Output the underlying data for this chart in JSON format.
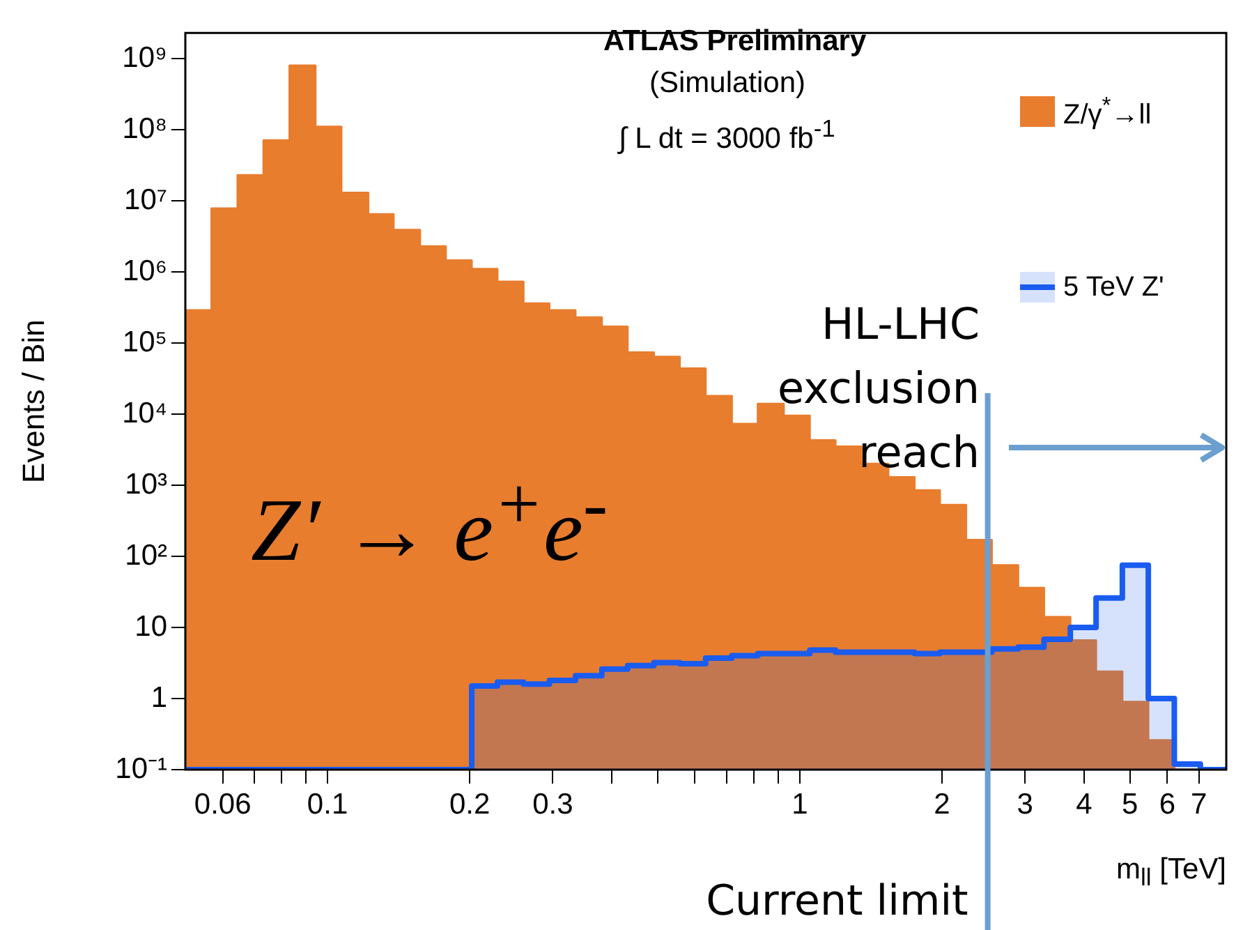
{
  "chart_data": {
    "type": "histogram",
    "xlabel": "m$_{ll}$ [TeV]",
    "ylabel": "Events / Bin",
    "log": "xy",
    "grid": false,
    "legend": "top right",
    "xlim": [
      0.05,
      8
    ],
    "ylim": [
      0.1,
      2300000000
    ],
    "xticks": [
      0.06,
      {
        "value": 0.07,
        "label": null
      },
      {
        "value": 0.08,
        "label": null
      },
      {
        "value": 0.09,
        "label": null
      },
      0.1,
      0.2,
      0.3,
      {
        "value": 0.4,
        "label": null
      },
      {
        "value": 0.5,
        "label": null
      },
      {
        "value": 0.6,
        "label": null
      },
      {
        "value": 0.7,
        "label": null
      },
      {
        "value": 0.8,
        "label": null
      },
      {
        "value": 0.9,
        "label": null
      },
      1,
      2,
      3,
      4,
      5,
      6,
      7
    ],
    "yticks": [
      {
        "value": 0.1,
        "label": "10⁻¹"
      },
      1,
      10,
      {
        "value": 100,
        "label": "10²"
      },
      {
        "value": 1000,
        "label": "10³"
      },
      {
        "value": 10000,
        "label": "10⁴"
      },
      {
        "value": 100000,
        "label": "10⁵"
      },
      {
        "value": 1000000,
        "label": "10⁶"
      },
      {
        "value": 10000000,
        "label": "10⁷"
      },
      {
        "value": 100000000,
        "label": "10⁸"
      },
      {
        "value": 1000000000,
        "label": "10⁹"
      }
    ],
    "bins": [
      0.05,
      0.0568,
      0.0645,
      0.0732,
      0.0831,
      0.0943,
      0.107,
      0.122,
      0.138,
      0.157,
      0.178,
      0.202,
      0.229,
      0.26,
      0.295,
      0.335,
      0.381,
      0.432,
      0.491,
      0.557,
      0.632,
      0.718,
      0.815,
      0.925,
      1.05,
      1.19,
      1.35,
      1.54,
      1.75,
      1.98,
      2.25,
      2.55,
      2.9,
      3.29,
      3.74,
      4.24,
      4.82,
      5.47,
      6.21,
      7.05,
      8
    ],
    "series": [
      {
        "name": "Z/γ$^{*}$→ll",
        "color": "#e87d2e",
        "values": [
          290000,
          7800000,
          23000000,
          71000000,
          800000000,
          110000000,
          13000000,
          6500000,
          3900000,
          2300000,
          1450000,
          1100000,
          730000,
          360000,
          290000,
          230000,
          170000,
          74000,
          64000,
          44000,
          18000,
          7300,
          14000,
          9500,
          4300,
          3500,
          2000,
          1300,
          850,
          530,
          170,
          75,
          36,
          14,
          6.6,
          2.4,
          0.9,
          0.26,
          null,
          null
        ]
      },
      {
        "name": "5 TeV Z'",
        "color": "#1a5cf0",
        "values": [
          null,
          null,
          null,
          null,
          null,
          null,
          null,
          null,
          null,
          null,
          null,
          1.5,
          1.7,
          1.6,
          1.8,
          2.1,
          2.6,
          2.9,
          3.2,
          3.1,
          3.7,
          4.0,
          4.3,
          4.3,
          4.8,
          4.5,
          4.5,
          4.5,
          4.3,
          4.5,
          4.5,
          5.0,
          5.3,
          6.8,
          10,
          26,
          75,
          1.0,
          0.12,
          null
        ]
      }
    ],
    "ref_lines": [
      {
        "axis": "x",
        "value": 2.5,
        "label": "Current limit",
        "color": "#6a9fd0"
      }
    ],
    "annotations": [
      "ATLAS Preliminary",
      "(Simulation)",
      "∫ L dt = 3000 fb$^{-1}$",
      "HL-LHC exclusion reach",
      "Z′ → e$^{+}$e$^{-}$"
    ]
  }
}
